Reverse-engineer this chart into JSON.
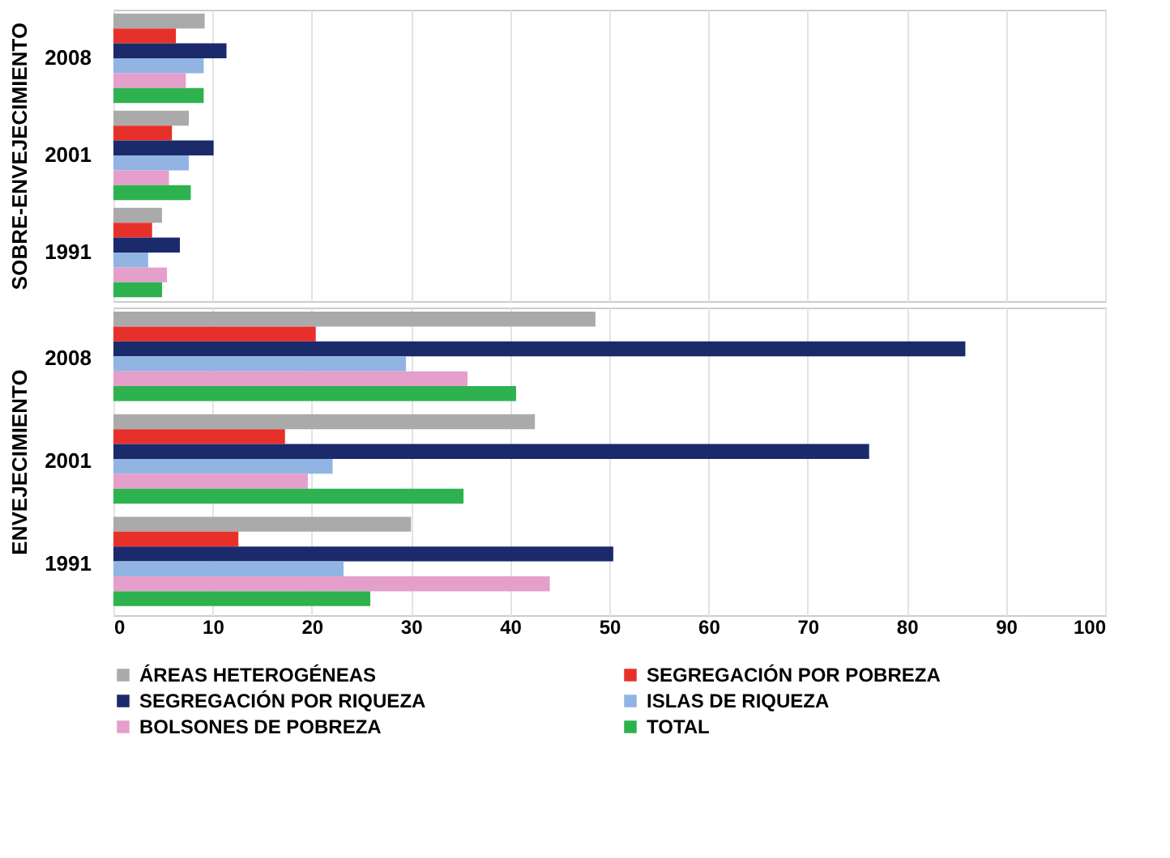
{
  "chart_data": [
    {
      "type": "bar",
      "orientation": "horizontal",
      "ylabel": "SOBRE-ENVEJECIMIENTO",
      "categories": [
        "2008",
        "2001",
        "1991"
      ],
      "xlim": [
        0,
        100
      ],
      "xticks": [
        0,
        10,
        20,
        30,
        40,
        50,
        60,
        70,
        80,
        90,
        100
      ],
      "grid": "x",
      "tick_labels": "y",
      "series": [
        {
          "color": "#aaaaaa",
          "values": [
            9.2,
            7.6,
            4.9
          ]
        },
        {
          "color": "#e8302a",
          "values": [
            6.3,
            5.9,
            3.9
          ]
        },
        {
          "color": "#1b2a6b",
          "values": [
            11.4,
            10.1,
            6.7
          ]
        },
        {
          "color": "#92b4e3",
          "values": [
            9.1,
            7.6,
            3.5
          ]
        },
        {
          "color": "#e49fcb",
          "values": [
            7.3,
            5.6,
            5.4
          ]
        },
        {
          "color": "#2eb24f",
          "values": [
            9.1,
            7.8,
            4.9
          ]
        }
      ]
    },
    {
      "type": "bar",
      "orientation": "horizontal",
      "ylabel": "ENVEJECIMIENTO",
      "categories": [
        "2008",
        "2001",
        "1991"
      ],
      "xlim": [
        0,
        100
      ],
      "xticks": [
        0,
        10,
        20,
        30,
        40,
        50,
        60,
        70,
        80,
        90,
        100
      ],
      "grid": "x",
      "legend": "bottom",
      "series": [
        {
          "name": "ÁREAS HETEROGÉNEAS",
          "color": "#aaaaaa",
          "values": [
            48.6,
            42.5,
            30.0
          ]
        },
        {
          "name": "SEGREGACIÓN POR POBREZA",
          "color": "#e8302a",
          "values": [
            20.4,
            17.3,
            12.6
          ]
        },
        {
          "name": "SEGREGACIÓN POR RIQUEZA",
          "color": "#1b2a6b",
          "values": [
            85.9,
            76.2,
            50.4
          ]
        },
        {
          "name": "ISLAS DE RIQUEZA",
          "color": "#92b4e3",
          "values": [
            29.5,
            22.1,
            23.2
          ]
        },
        {
          "name": "BOLSONES DE POBREZA",
          "color": "#e49fcb",
          "values": [
            35.7,
            19.6,
            44.0
          ]
        },
        {
          "name": "TOTAL",
          "color": "#2eb24f",
          "values": [
            40.6,
            35.3,
            25.9
          ]
        }
      ]
    }
  ]
}
